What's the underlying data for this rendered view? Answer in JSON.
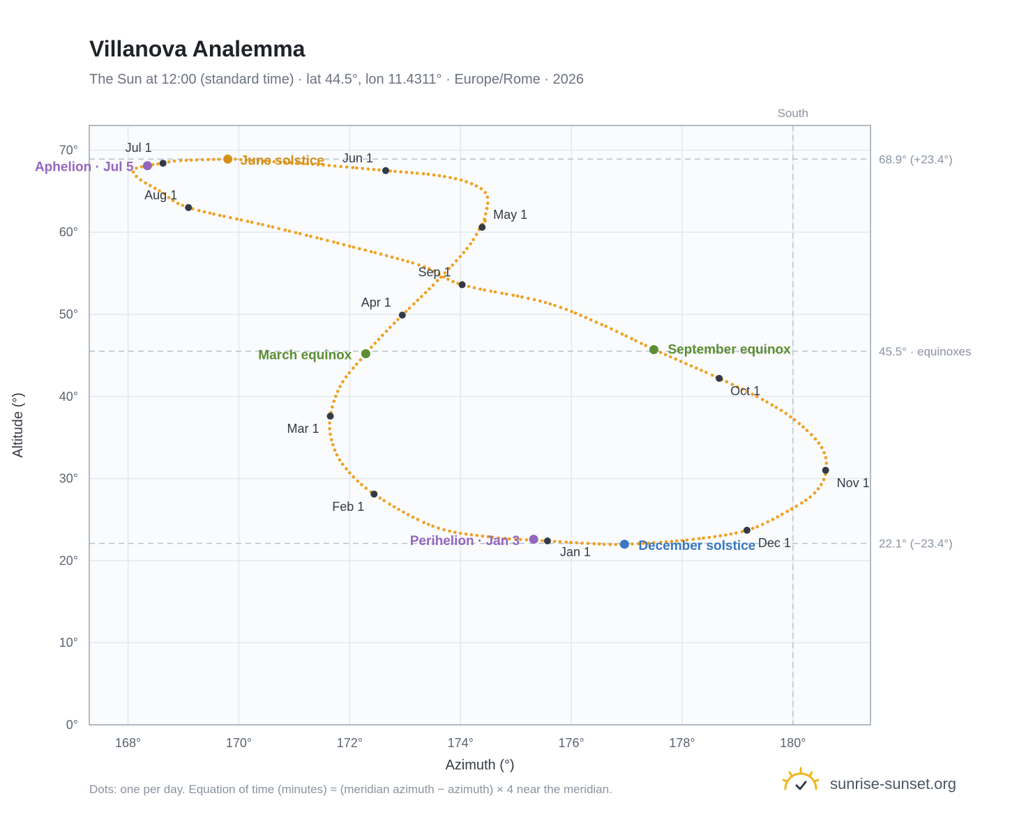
{
  "title": "Villanova Analemma",
  "subtitle": "The Sun at 12:00 (standard time) · lat 44.5°, lon 11.4311° · Europe/Rome · 2026",
  "footer": "Dots: one per day. Equation of time (minutes) ≈ (meridian azimuth − azimuth) × 4 near the meridian.",
  "brand": {
    "text": "sunrise-sunset.org",
    "icon": "sun-check-icon"
  },
  "colors": {
    "curve": "#f0a020",
    "month_dot": "#333a45",
    "solstice_june": "#d4911a",
    "solstice_december": "#3a78c0",
    "equinox": "#5b8e32",
    "apsis": "#9467bd",
    "grid": "#e3e8ee",
    "plot_bg": "#f9fbfd",
    "ref_line": "#b8c2cc"
  },
  "chart_data": {
    "type": "scatter",
    "xlabel": "Azimuth (°)",
    "ylabel": "Altitude (°)",
    "xlim": [
      167.3,
      181.4
    ],
    "ylim": [
      0,
      73
    ],
    "x_ticks": [
      168,
      170,
      172,
      174,
      176,
      178,
      180
    ],
    "x_tick_labels": [
      "168°",
      "170°",
      "172°",
      "174°",
      "176°",
      "178°",
      "180°"
    ],
    "y_ticks": [
      0,
      10,
      20,
      30,
      40,
      50,
      60,
      70
    ],
    "y_tick_labels": [
      "0°",
      "10°",
      "20°",
      "30°",
      "40°",
      "50°",
      "60°",
      "70°"
    ],
    "grid": true,
    "series": [
      {
        "role": "daily-path",
        "points": [
          [
            175.57,
            22.4
          ],
          [
            174.5,
            22.9
          ],
          [
            173.5,
            24.2
          ],
          [
            172.44,
            28.1
          ],
          [
            171.9,
            31.5
          ],
          [
            171.68,
            34.5
          ],
          [
            171.65,
            37.6
          ],
          [
            171.85,
            41.5
          ],
          [
            172.29,
            45.2
          ],
          [
            172.6,
            47.5
          ],
          [
            172.95,
            49.9
          ],
          [
            173.6,
            54.2
          ],
          [
            174.15,
            58.3
          ],
          [
            174.45,
            61.7
          ],
          [
            174.39,
            60.6
          ],
          [
            174.49,
            64.2
          ],
          [
            174.2,
            65.9
          ],
          [
            173.6,
            66.9
          ],
          [
            172.65,
            67.5
          ],
          [
            171.3,
            68.3
          ],
          [
            170.2,
            68.75
          ],
          [
            169.8,
            68.9
          ],
          [
            168.9,
            68.7
          ],
          [
            168.63,
            68.4
          ],
          [
            168.35,
            68.1
          ],
          [
            168.1,
            67.6
          ],
          [
            168.2,
            66.5
          ],
          [
            168.6,
            64.9
          ],
          [
            169.09,
            63.0
          ],
          [
            170.5,
            60.8
          ],
          [
            172.0,
            58.3
          ],
          [
            173.3,
            55.9
          ],
          [
            174.03,
            53.6
          ],
          [
            175.5,
            51.5
          ],
          [
            176.5,
            48.9
          ],
          [
            177.5,
            45.7
          ],
          [
            178.67,
            42.2
          ],
          [
            179.4,
            39.8
          ],
          [
            180.0,
            37.3
          ],
          [
            180.5,
            34.0
          ],
          [
            180.6,
            31.0
          ],
          [
            180.4,
            28.3
          ],
          [
            179.9,
            26.0
          ],
          [
            179.17,
            23.7
          ],
          [
            178.2,
            22.6
          ],
          [
            177.0,
            22.0
          ],
          [
            176.3,
            22.1
          ],
          [
            175.57,
            22.4
          ]
        ]
      }
    ],
    "month_markers": [
      {
        "label": "Jan 1",
        "x": 175.57,
        "y": 22.4
      },
      {
        "label": "Feb 1",
        "x": 172.44,
        "y": 28.1
      },
      {
        "label": "Mar 1",
        "x": 171.65,
        "y": 37.6
      },
      {
        "label": "Apr 1",
        "x": 172.95,
        "y": 49.9
      },
      {
        "label": "May 1",
        "x": 174.39,
        "y": 60.6
      },
      {
        "label": "Jun 1",
        "x": 172.65,
        "y": 67.5
      },
      {
        "label": "Jul 1",
        "x": 168.63,
        "y": 68.4
      },
      {
        "label": "Aug 1",
        "x": 169.09,
        "y": 63.0
      },
      {
        "label": "Sep 1",
        "x": 174.03,
        "y": 53.6
      },
      {
        "label": "Oct 1",
        "x": 178.67,
        "y": 42.2
      },
      {
        "label": "Nov 1",
        "x": 180.59,
        "y": 31.0
      },
      {
        "label": "Dec 1",
        "x": 179.17,
        "y": 23.7
      }
    ],
    "events": [
      {
        "label": "June solstice",
        "x": 169.8,
        "y": 68.9,
        "color_key": "solstice_june"
      },
      {
        "label": "December solstice",
        "x": 176.96,
        "y": 22.0,
        "color_key": "solstice_december"
      },
      {
        "label": "March equinox",
        "x": 172.29,
        "y": 45.2,
        "color_key": "equinox"
      },
      {
        "label": "September equinox",
        "x": 177.49,
        "y": 45.7,
        "color_key": "equinox"
      },
      {
        "label": "Aphelion · Jul 5",
        "x": 168.35,
        "y": 68.1,
        "color_key": "apsis"
      },
      {
        "label": "Perihelion · Jan 3",
        "x": 175.32,
        "y": 22.6,
        "color_key": "apsis"
      }
    ],
    "reference_lines": [
      {
        "orientation": "horizontal",
        "value": 68.9,
        "label": "68.9° (+23.4°)"
      },
      {
        "orientation": "horizontal",
        "value": 45.5,
        "label": "45.5° · equinoxes"
      },
      {
        "orientation": "horizontal",
        "value": 22.1,
        "label": "22.1° (−23.4°)"
      },
      {
        "orientation": "vertical",
        "value": 180,
        "label": "South"
      }
    ]
  }
}
